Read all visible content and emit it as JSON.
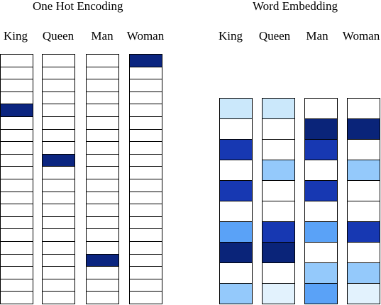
{
  "one_hot": {
    "title": "One Hot Encoding",
    "columns": [
      {
        "label": "King",
        "hot_index": 4
      },
      {
        "label": "Queen",
        "hot_index": 8
      },
      {
        "label": "Man",
        "hot_index": 16
      },
      {
        "label": "Woman",
        "hot_index": 0
      }
    ],
    "rows": 20,
    "hot_color": "#0b2580",
    "cold_color": "#ffffff"
  },
  "embedding": {
    "title": "Word Embedding",
    "columns": [
      {
        "label": "King",
        "cells": [
          1,
          0,
          4,
          0,
          4,
          0,
          3,
          5,
          0,
          2
        ]
      },
      {
        "label": "Queen",
        "cells": [
          1,
          0,
          0,
          2,
          0,
          0,
          4,
          5,
          0,
          6
        ]
      },
      {
        "label": "Man",
        "cells": [
          0,
          5,
          4,
          0,
          4,
          0,
          3,
          0,
          2,
          3
        ]
      },
      {
        "label": "Woman",
        "cells": [
          0,
          5,
          0,
          2,
          0,
          0,
          4,
          0,
          2,
          6
        ]
      }
    ],
    "palette": [
      "#ffffff",
      "#cbe8fb",
      "#94c9fb",
      "#5aa2f7",
      "#1738b2",
      "#0a2479",
      "#e2f2fd"
    ]
  }
}
